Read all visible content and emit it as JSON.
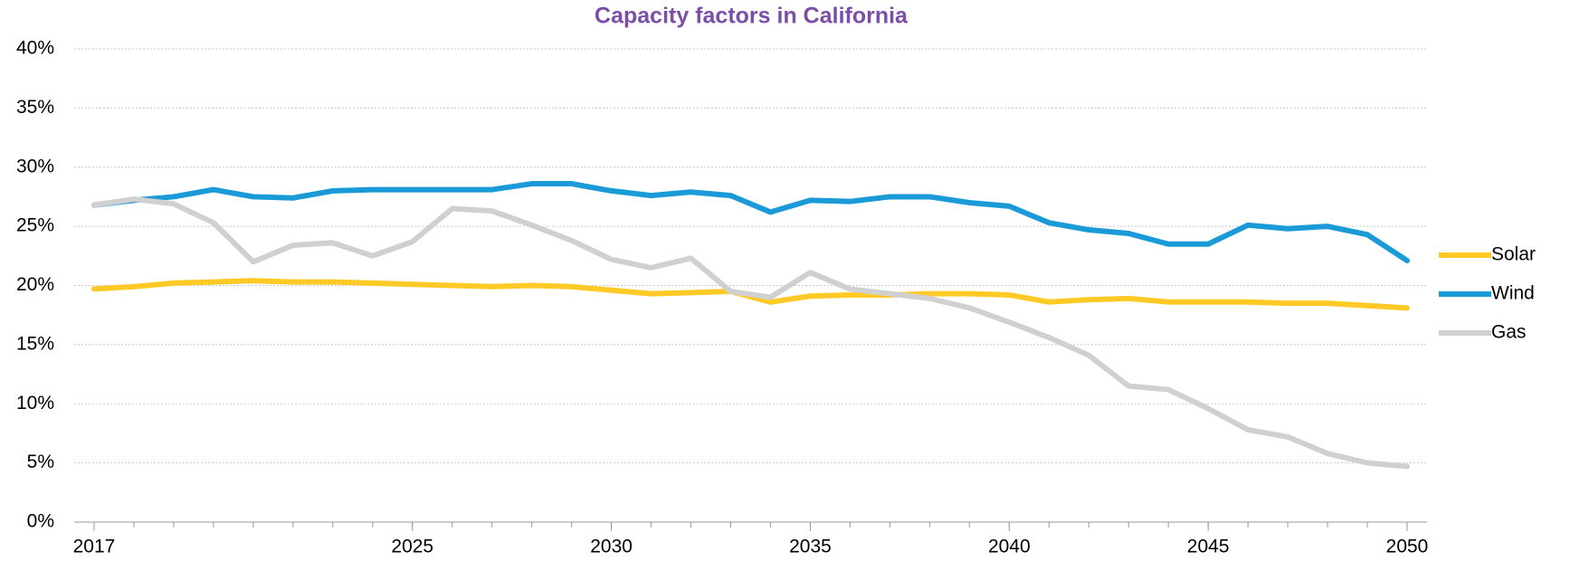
{
  "chart_data": {
    "type": "line",
    "title": "Capacity factors in California",
    "x": [
      2017,
      2018,
      2019,
      2020,
      2021,
      2022,
      2023,
      2024,
      2025,
      2026,
      2027,
      2028,
      2029,
      2030,
      2031,
      2032,
      2033,
      2034,
      2035,
      2036,
      2037,
      2038,
      2039,
      2040,
      2041,
      2042,
      2043,
      2044,
      2045,
      2046,
      2047,
      2048,
      2049,
      2050
    ],
    "series": [
      {
        "name": "Solar",
        "color": "#ffc926",
        "values": [
          19.7,
          19.9,
          20.2,
          20.3,
          20.4,
          20.3,
          20.3,
          20.2,
          20.1,
          20.0,
          19.9,
          20.0,
          19.9,
          19.6,
          19.3,
          19.4,
          19.5,
          18.6,
          19.1,
          19.2,
          19.2,
          19.3,
          19.3,
          19.2,
          18.6,
          18.8,
          18.9,
          18.6,
          18.6,
          18.6,
          18.5,
          18.5,
          18.3,
          18.1
        ]
      },
      {
        "name": "Wind",
        "color": "#1a9bd7",
        "values": [
          26.8,
          27.2,
          27.5,
          28.1,
          27.5,
          27.4,
          28.0,
          28.1,
          28.1,
          28.1,
          28.1,
          28.6,
          28.6,
          28.0,
          27.6,
          27.9,
          27.6,
          26.2,
          27.2,
          27.1,
          27.5,
          27.5,
          27.0,
          26.7,
          25.3,
          24.7,
          24.4,
          23.5,
          23.5,
          25.1,
          24.8,
          25.0,
          24.3,
          22.1
        ]
      },
      {
        "name": "Gas",
        "color": "#d0d0d0",
        "values": [
          26.8,
          27.3,
          26.9,
          25.3,
          22.0,
          23.4,
          23.6,
          22.5,
          23.7,
          26.5,
          26.3,
          25.1,
          23.8,
          22.2,
          21.5,
          22.3,
          19.5,
          19.0,
          21.1,
          19.7,
          19.3,
          18.9,
          18.1,
          16.9,
          15.6,
          14.1,
          11.5,
          11.2,
          9.6,
          7.8,
          7.2,
          5.8,
          5.0,
          4.7
        ]
      }
    ],
    "xlim": [
      2016.5,
      2050.5
    ],
    "xticks": [
      2017,
      2025,
      2030,
      2035,
      2040,
      2045,
      2050
    ],
    "ylim": [
      0,
      40
    ],
    "yticks": [
      {
        "value": 0,
        "label": "0%"
      },
      {
        "value": 5,
        "label": "5%"
      },
      {
        "value": 10,
        "label": "10%"
      },
      {
        "value": 15,
        "label": "15%"
      },
      {
        "value": 20,
        "label": "20%"
      },
      {
        "value": 25,
        "label": "25%"
      },
      {
        "value": 30,
        "label": "30%"
      },
      {
        "value": 35,
        "label": "35%"
      },
      {
        "value": 40,
        "label": "40%"
      }
    ],
    "grid": true,
    "legend": "right"
  }
}
